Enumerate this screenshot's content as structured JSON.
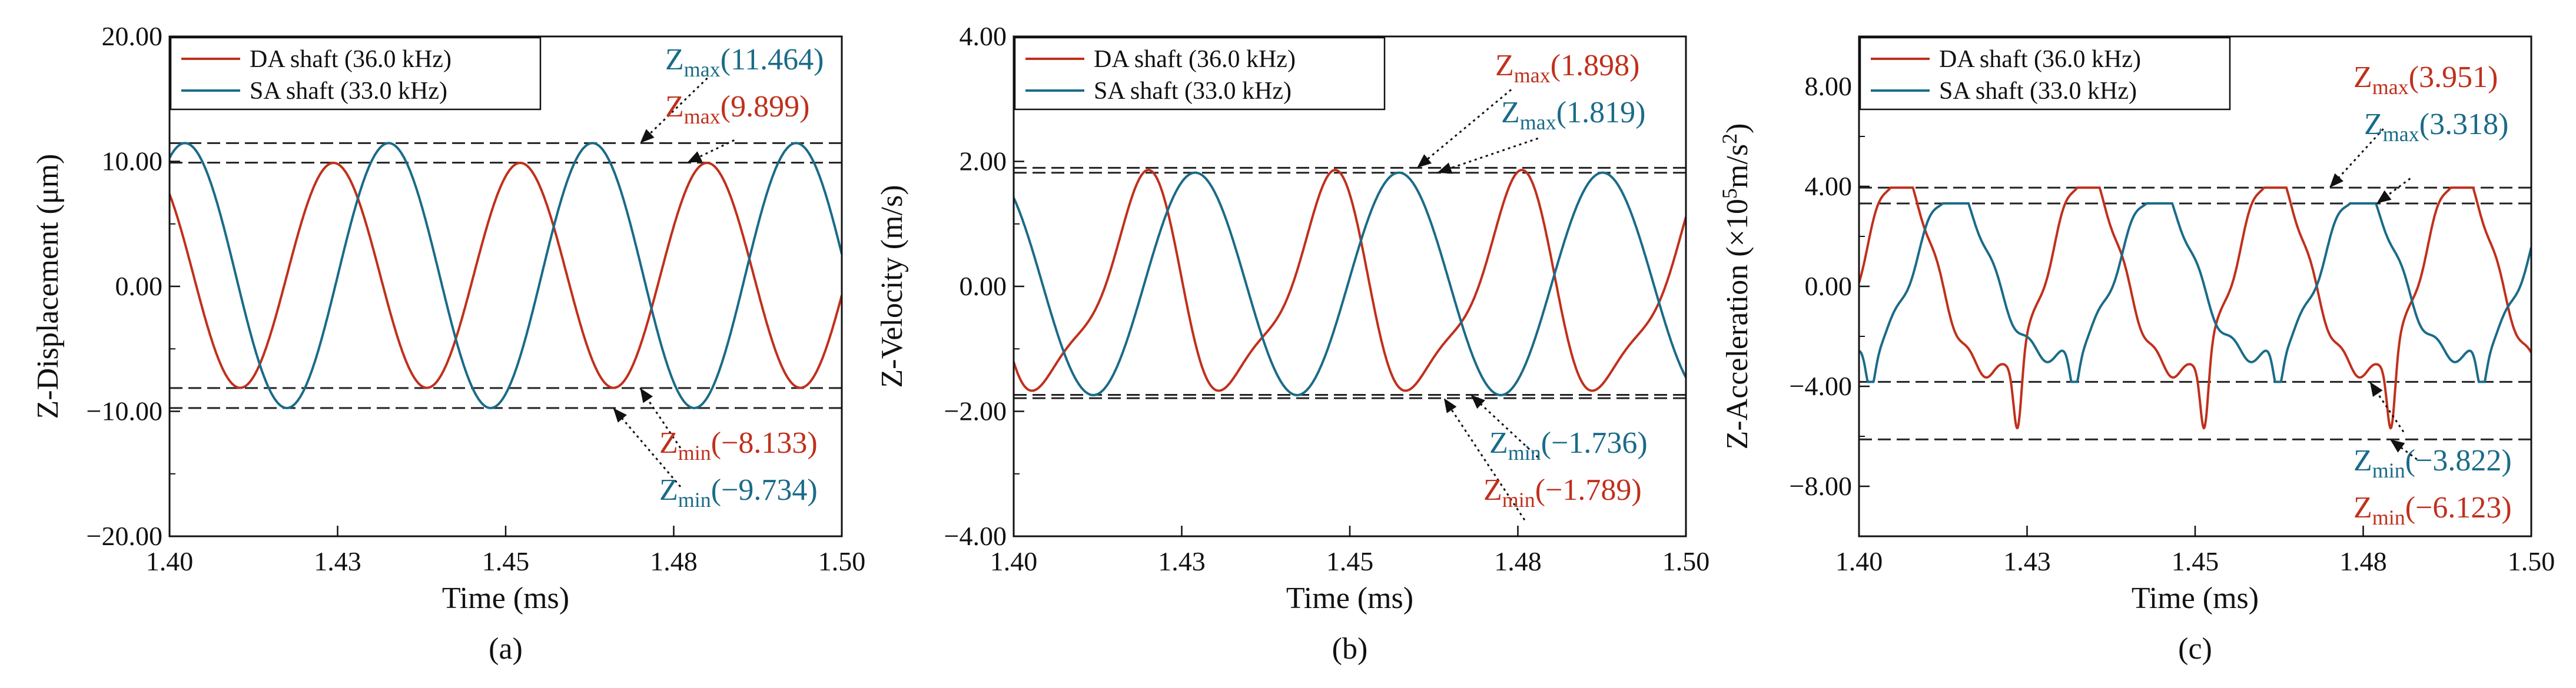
{
  "figure_title": "",
  "series_colors": {
    "da": "#c0301c",
    "sa": "#1a6b88"
  },
  "chart_data": [
    {
      "type": "line",
      "panel_label": "(a)",
      "xlabel": "Time (ms)",
      "ylabel": "Z-Displacement (μm)",
      "ylabel_parts": [
        "Z-Displacement (μm)"
      ],
      "xlim": [
        1.4,
        1.5
      ],
      "ylim": [
        -20,
        20
      ],
      "xticks": [
        1.4,
        1.425,
        1.45,
        1.475,
        1.5
      ],
      "xtick_labels": [
        "1.40",
        "1.43",
        "1.45",
        "1.48",
        "1.50"
      ],
      "yticks": [
        -20,
        -10,
        0,
        10,
        20
      ],
      "ytick_labels": [
        "−20.00",
        "−10.00",
        "0.00",
        "10.00",
        "20.00"
      ],
      "legend": [
        "DA shaft (36.0 kHz)",
        "SA shaft (33.0 kHz)"
      ],
      "series": [
        {
          "name": "DA shaft (36.0 kHz)",
          "color": "#c0301c",
          "freq_khz": 36.0,
          "shape": "sine",
          "amplitude": 9.0,
          "offset": 0.883,
          "peak_time_ms": 1.4244
        },
        {
          "name": "SA shaft (33.0 kHz)",
          "color": "#1a6b88",
          "freq_khz": 33.0,
          "shape": "sine",
          "amplitude": 10.6,
          "offset": 0.865,
          "peak_time_ms": 1.4326
        }
      ],
      "reference_lines": [
        11.464,
        9.899,
        -8.133,
        -9.734
      ],
      "annotations": [
        {
          "label": "Z",
          "sub": "max",
          "value": "(11.464)",
          "color": "#1a6b88",
          "y_value": 11.464
        },
        {
          "label": "Z",
          "sub": "max",
          "value": "(9.899)",
          "color": "#c0301c",
          "y_value": 9.899
        },
        {
          "label": "Z",
          "sub": "min",
          "value": "(−8.133)",
          "color": "#c0301c",
          "y_value": -8.133
        },
        {
          "label": "Z",
          "sub": "min",
          "value": "(−9.734)",
          "color": "#1a6b88",
          "y_value": -9.734
        }
      ]
    },
    {
      "type": "line",
      "panel_label": "(b)",
      "xlabel": "Time (ms)",
      "ylabel": "Z-Velocity (m/s)",
      "ylabel_parts": [
        "Z-Velocity (m/s)"
      ],
      "xlim": [
        1.4,
        1.5
      ],
      "ylim": [
        -4,
        4
      ],
      "xticks": [
        1.4,
        1.425,
        1.45,
        1.475,
        1.5
      ],
      "xtick_labels": [
        "1.40",
        "1.43",
        "1.45",
        "1.48",
        "1.50"
      ],
      "yticks": [
        -4,
        -2,
        0,
        2,
        4
      ],
      "ytick_labels": [
        "−4.00",
        "−2.00",
        "0.00",
        "2.00",
        "4.00"
      ],
      "legend": [
        "DA shaft (36.0 kHz)",
        "SA shaft (33.0 kHz)"
      ],
      "series": [
        {
          "name": "DA shaft (36.0 kHz)",
          "color": "#c0301c",
          "freq_khz": 36.0,
          "shape": "skewed",
          "amplitude": 1.85,
          "offset": 0.05,
          "peak_time_ms": 1.419
        },
        {
          "name": "SA shaft (33.0 kHz)",
          "color": "#1a6b88",
          "freq_khz": 33.0,
          "shape": "sine",
          "amplitude": 1.78,
          "offset": 0.04,
          "peak_time_ms": 1.427
        }
      ],
      "reference_lines": [
        1.898,
        1.819,
        -1.736,
        -1.789
      ],
      "annotations": [
        {
          "label": "Z",
          "sub": "max",
          "value": "(1.898)",
          "color": "#c0301c",
          "y_value": 1.898
        },
        {
          "label": "Z",
          "sub": "max",
          "value": "(1.819)",
          "color": "#1a6b88",
          "y_value": 1.819
        },
        {
          "label": "Z",
          "sub": "min",
          "value": "(−1.736)",
          "color": "#1a6b88",
          "y_value": -1.736
        },
        {
          "label": "Z",
          "sub": "min",
          "value": "(−1.789)",
          "color": "#c0301c",
          "y_value": -1.789
        }
      ]
    },
    {
      "type": "line",
      "panel_label": "(c)",
      "xlabel": "Time (ms)",
      "ylabel": "Z-Acceleration (×10⁵m/s²)",
      "ylabel_parts": [
        "Z-Acceleration (×10",
        "5",
        "m/s",
        "2",
        ")"
      ],
      "xlim": [
        1.4,
        1.5
      ],
      "ylim": [
        -10,
        10
      ],
      "xticks": [
        1.4,
        1.425,
        1.45,
        1.475,
        1.5
      ],
      "xtick_labels": [
        "1.40",
        "1.43",
        "1.45",
        "1.48",
        "1.50"
      ],
      "yticks": [
        -8,
        -4,
        0,
        4,
        8
      ],
      "ytick_labels": [
        "−8.00",
        "−4.00",
        "0.00",
        "4.00",
        "8.00"
      ],
      "legend": [
        "DA shaft (36.0 kHz)",
        "SA shaft (33.0 kHz)"
      ],
      "series": [
        {
          "name": "DA shaft (36.0 kHz)",
          "color": "#c0301c",
          "freq_khz": 36.0,
          "shape": "accel",
          "amplitude": 3.95,
          "offset": 0.0,
          "peak_time_ms": 1.406,
          "spike_time_ms": 1.4236,
          "spike_value": -6.123
        },
        {
          "name": "SA shaft (33.0 kHz)",
          "color": "#1a6b88",
          "freq_khz": 33.0,
          "shape": "accel",
          "amplitude": 3.32,
          "offset": 0.0,
          "peak_time_ms": 1.414,
          "spike_time_ms": 1.432,
          "spike_value": -3.822
        }
      ],
      "reference_lines": [
        3.951,
        3.318,
        -3.822,
        -6.123
      ],
      "annotations": [
        {
          "label": "Z",
          "sub": "max",
          "value": "(3.951)",
          "color": "#c0301c",
          "y_value": 3.951
        },
        {
          "label": "Z",
          "sub": "max",
          "value": "(3.318)",
          "color": "#1a6b88",
          "y_value": 3.318
        },
        {
          "label": "Z",
          "sub": "min",
          "value": "(−3.822)",
          "color": "#1a6b88",
          "y_value": -3.822
        },
        {
          "label": "Z",
          "sub": "min",
          "value": "(−6.123)",
          "color": "#c0301c",
          "y_value": -6.123
        }
      ]
    }
  ]
}
